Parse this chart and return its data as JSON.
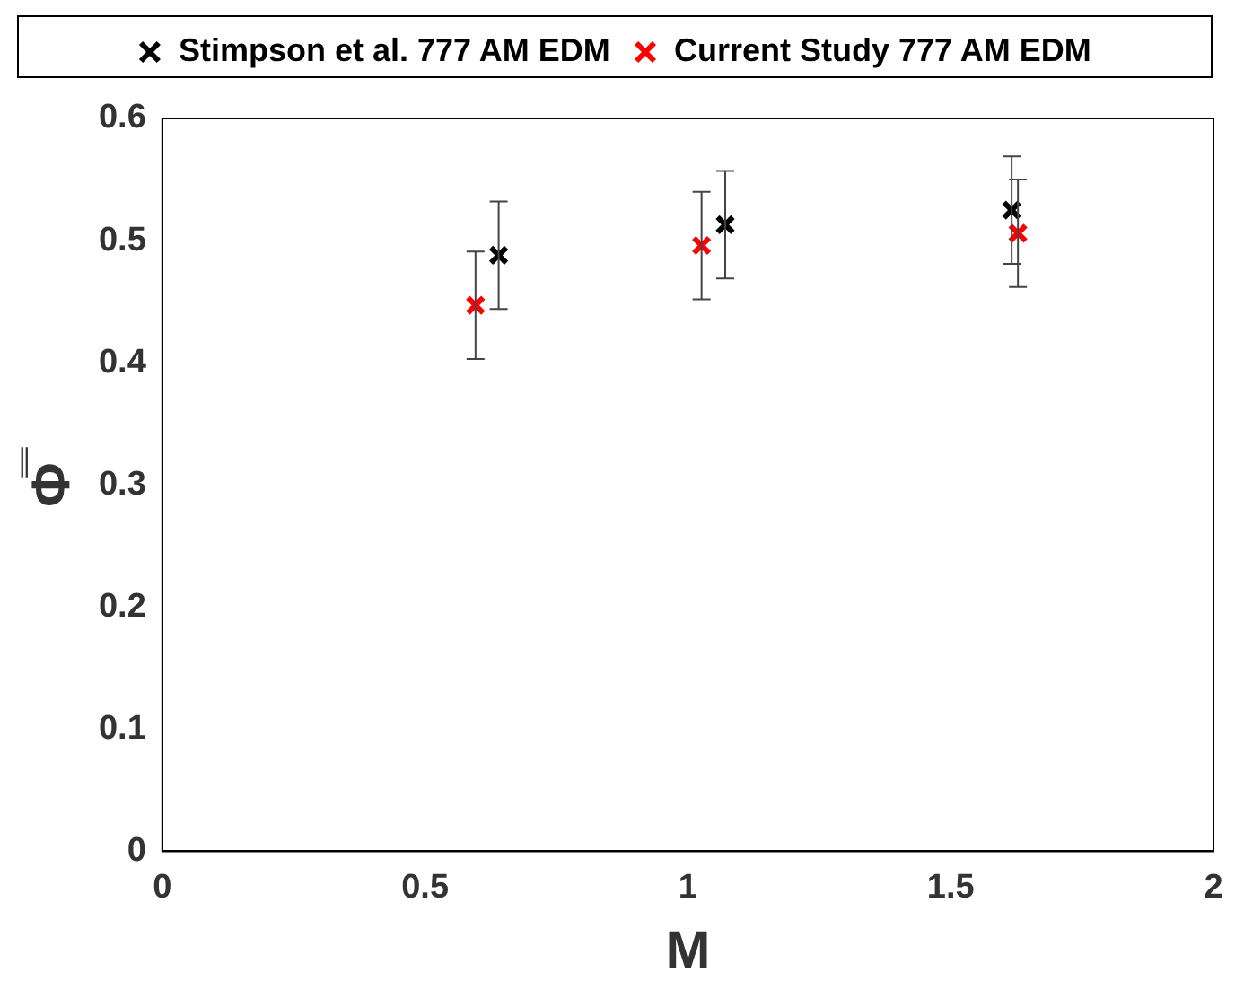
{
  "chart_data": {
    "type": "scatter",
    "xlabel": "M",
    "ylabel": "Φ̿",
    "xlim": [
      0,
      2
    ],
    "xticks": [
      0,
      0.5,
      1,
      1.5,
      2
    ],
    "ylim": [
      0,
      0.6
    ],
    "yticks": [
      0,
      0.1,
      0.2,
      0.3,
      0.4,
      0.5,
      0.6
    ],
    "legend": "top",
    "marker": "cross",
    "grid": false,
    "series": [
      {
        "name": "Stimpson et al. 777 AM EDM",
        "color": "#000000",
        "x": [
          0.64,
          1.071,
          1.616
        ],
        "values": [
          0.488,
          0.513,
          0.525
        ],
        "errors": [
          0.044,
          0.044,
          0.044
        ]
      },
      {
        "name": "Current Study 777 AM EDM",
        "color": "#ff0000",
        "x": [
          0.596,
          1.026,
          1.628
        ],
        "values": [
          0.447,
          0.496,
          0.506
        ],
        "errors": [
          0.044,
          0.044,
          0.044
        ]
      }
    ]
  }
}
